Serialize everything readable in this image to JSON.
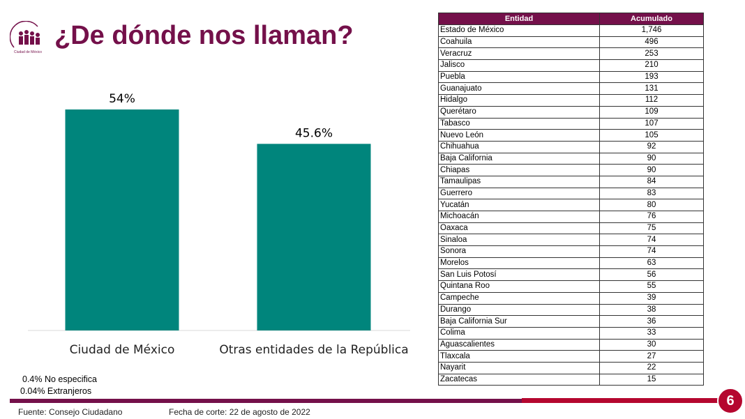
{
  "title": "¿De dónde nos llaman?",
  "logo_text": "Consejo Ciudadano Ciudad de México",
  "chart_data": {
    "type": "bar",
    "title": "",
    "categories": [
      "Ciudad de México",
      "Otras entidades de la República"
    ],
    "values": [
      54,
      45.6
    ],
    "data_labels": [
      "54%",
      "45.6%"
    ],
    "ylim": [
      0,
      92
    ],
    "xlabel": "",
    "ylabel": "",
    "grid": false,
    "color": "#00857c"
  },
  "notes": [
    "0.4% No especifica",
    "0.04% Extranjeros"
  ],
  "table": {
    "headers": [
      "Entidad",
      "Acumulado"
    ],
    "rows": [
      [
        "Estado de México",
        "1,746"
      ],
      [
        "Coahuila",
        "496"
      ],
      [
        "Veracruz",
        "253"
      ],
      [
        "Jalisco",
        "210"
      ],
      [
        "Puebla",
        "193"
      ],
      [
        "Guanajuato",
        "131"
      ],
      [
        "Hidalgo",
        "112"
      ],
      [
        "Querétaro",
        "109"
      ],
      [
        "Tabasco",
        "107"
      ],
      [
        "Nuevo León",
        "105"
      ],
      [
        "Chihuahua",
        "92"
      ],
      [
        "Baja California",
        "90"
      ],
      [
        "Chiapas",
        "90"
      ],
      [
        "Tamaulipas",
        "84"
      ],
      [
        "Guerrero",
        "83"
      ],
      [
        "Yucatán",
        "80"
      ],
      [
        "Michoacán",
        "76"
      ],
      [
        "Oaxaca",
        "75"
      ],
      [
        "Sinaloa",
        "74"
      ],
      [
        "Sonora",
        "74"
      ],
      [
        "Morelos",
        "63"
      ],
      [
        "San Luis Potosí",
        "56"
      ],
      [
        "Quintana Roo",
        "55"
      ],
      [
        "Campeche",
        "39"
      ],
      [
        "Durango",
        "38"
      ],
      [
        "Baja California Sur",
        "36"
      ],
      [
        "Colima",
        "33"
      ],
      [
        "Aguascalientes",
        "30"
      ],
      [
        "Tlaxcala",
        "27"
      ],
      [
        "Nayarit",
        "22"
      ],
      [
        "Zacatecas",
        "15"
      ]
    ]
  },
  "footer": {
    "source": "Fuente: Consejo Ciudadano",
    "date": "Fecha de corte: 22 de agosto de 2022",
    "page": "6"
  }
}
